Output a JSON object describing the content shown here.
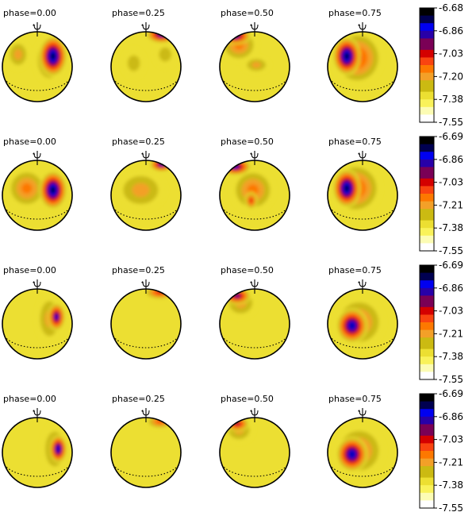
{
  "rows": [
    {
      "colorbar": {
        "labels": [
          "-6.68",
          "-6.86",
          "-7.03",
          "-7.20",
          "-7.38",
          "-7.55"
        ]
      },
      "panels": [
        {
          "label": "phase=0.00",
          "spots": [
            {
              "u": 0.35,
              "v": 0.2,
              "rx": 0.45,
              "ry": 0.7,
              "level": 0.45
            },
            {
              "u": -0.55,
              "v": 0.35,
              "rx": 0.35,
              "ry": 0.45,
              "level": 0.35
            },
            {
              "u": 0.45,
              "v": 0.3,
              "rx": 0.4,
              "ry": 0.58,
              "level": 0.97
            }
          ]
        },
        {
          "label": "phase=0.25",
          "spots": [
            {
              "u": -0.35,
              "v": 0.1,
              "rx": 0.35,
              "ry": 0.45,
              "level": 0.28
            },
            {
              "u": 0.55,
              "v": 0.35,
              "rx": 0.35,
              "ry": 0.4,
              "level": 0.3
            },
            {
              "u": 0.45,
              "v": 0.92,
              "rx": 0.45,
              "ry": 0.25,
              "level": 0.88
            }
          ]
        },
        {
          "label": "phase=0.50",
          "spots": [
            {
              "u": -0.45,
              "v": 0.62,
              "rx": 0.55,
              "ry": 0.5,
              "level": 0.45
            },
            {
              "u": 0.05,
              "v": 0.05,
              "rx": 0.4,
              "ry": 0.25,
              "level": 0.4
            },
            {
              "u": -0.55,
              "v": 0.88,
              "rx": 0.45,
              "ry": 0.25,
              "level": 0.88
            }
          ]
        },
        {
          "label": "phase=0.75",
          "spots": [
            {
              "u": -0.15,
              "v": 0.25,
              "rx": 0.75,
              "ry": 0.8,
              "level": 0.55
            },
            {
              "u": -0.45,
              "v": 0.3,
              "rx": 0.4,
              "ry": 0.55,
              "level": 0.97
            }
          ]
        }
      ]
    },
    {
      "colorbar": {
        "labels": [
          "-6.69",
          "-6.86",
          "-7.03",
          "-7.21",
          "-7.38",
          "-7.55"
        ]
      },
      "panels": [
        {
          "label": "phase=0.00",
          "spots": [
            {
              "u": -0.3,
              "v": 0.2,
              "rx": 0.6,
              "ry": 0.6,
              "level": 0.45
            },
            {
              "u": 0.45,
              "v": 0.15,
              "rx": 0.4,
              "ry": 0.55,
              "level": 0.97
            }
          ]
        },
        {
          "label": "phase=0.25",
          "spots": [
            {
              "u": -0.15,
              "v": 0.15,
              "rx": 0.75,
              "ry": 0.6,
              "level": 0.4
            },
            {
              "u": 0.45,
              "v": 0.88,
              "rx": 0.35,
              "ry": 0.2,
              "level": 0.85
            }
          ]
        },
        {
          "label": "phase=0.50",
          "spots": [
            {
              "u": -0.05,
              "v": 0.15,
              "rx": 0.65,
              "ry": 0.65,
              "level": 0.45
            },
            {
              "u": -0.1,
              "v": -0.15,
              "rx": 0.18,
              "ry": 0.25,
              "level": 0.62
            },
            {
              "u": -0.55,
              "v": 0.82,
              "rx": 0.45,
              "ry": 0.25,
              "level": 0.88
            }
          ]
        },
        {
          "label": "phase=0.75",
          "spots": [
            {
              "u": -0.2,
              "v": 0.2,
              "rx": 0.75,
              "ry": 0.75,
              "level": 0.5
            },
            {
              "u": -0.45,
              "v": 0.2,
              "rx": 0.4,
              "ry": 0.55,
              "level": 0.97
            }
          ]
        }
      ]
    },
    {
      "colorbar": {
        "labels": [
          "-6.69",
          "-6.86",
          "-7.03",
          "-7.21",
          "-7.38",
          "-7.55"
        ]
      },
      "panels": [
        {
          "label": "phase=0.00",
          "spots": [
            {
              "u": 0.35,
              "v": 0.15,
              "rx": 0.4,
              "ry": 0.75,
              "level": 0.4
            },
            {
              "u": 0.55,
              "v": 0.2,
              "rx": 0.25,
              "ry": 0.4,
              "level": 0.85
            }
          ]
        },
        {
          "label": "phase=0.25",
          "spots": [
            {
              "u": 0.4,
              "v": 0.9,
              "rx": 0.45,
              "ry": 0.2,
              "level": 0.6
            }
          ]
        },
        {
          "label": "phase=0.50",
          "spots": [
            {
              "u": -0.4,
              "v": 0.6,
              "rx": 0.5,
              "ry": 0.45,
              "level": 0.4
            },
            {
              "u": -0.5,
              "v": 0.8,
              "rx": 0.4,
              "ry": 0.25,
              "level": 0.75
            }
          ]
        },
        {
          "label": "phase=0.75",
          "spots": [
            {
              "u": -0.1,
              "v": 0.05,
              "rx": 0.75,
              "ry": 0.75,
              "level": 0.45
            },
            {
              "u": -0.3,
              "v": -0.05,
              "rx": 0.45,
              "ry": 0.5,
              "level": 0.92
            }
          ]
        }
      ]
    },
    {
      "colorbar": {
        "labels": [
          "-6.69",
          "-6.86",
          "-7.03",
          "-7.21",
          "-7.38",
          "-7.55"
        ]
      },
      "panels": [
        {
          "label": "phase=0.00",
          "spots": [
            {
              "u": 0.5,
              "v": 0.1,
              "rx": 0.4,
              "ry": 0.75,
              "level": 0.4
            },
            {
              "u": 0.6,
              "v": 0.1,
              "rx": 0.25,
              "ry": 0.4,
              "level": 0.9
            }
          ]
        },
        {
          "label": "phase=0.25",
          "spots": [
            {
              "u": 0.4,
              "v": 0.88,
              "rx": 0.4,
              "ry": 0.2,
              "level": 0.5
            }
          ]
        },
        {
          "label": "phase=0.50",
          "spots": [
            {
              "u": -0.45,
              "v": 0.65,
              "rx": 0.45,
              "ry": 0.4,
              "level": 0.35
            },
            {
              "u": -0.5,
              "v": 0.82,
              "rx": 0.35,
              "ry": 0.22,
              "level": 0.7
            }
          ]
        },
        {
          "label": "phase=0.75",
          "spots": [
            {
              "u": -0.1,
              "v": 0.05,
              "rx": 0.75,
              "ry": 0.75,
              "level": 0.45
            },
            {
              "u": -0.3,
              "v": -0.05,
              "rx": 0.45,
              "ry": 0.5,
              "level": 0.92
            }
          ]
        }
      ]
    }
  ],
  "colormap": [
    "#ffffff",
    "#fcfcb4",
    "#f9f25a",
    "#ecdf32",
    "#cbba12",
    "#f3a028",
    "#fd7800",
    "#f94410",
    "#d40000",
    "#7a0056",
    "#2800a8",
    "#0000f0",
    "#000050",
    "#000000"
  ]
}
